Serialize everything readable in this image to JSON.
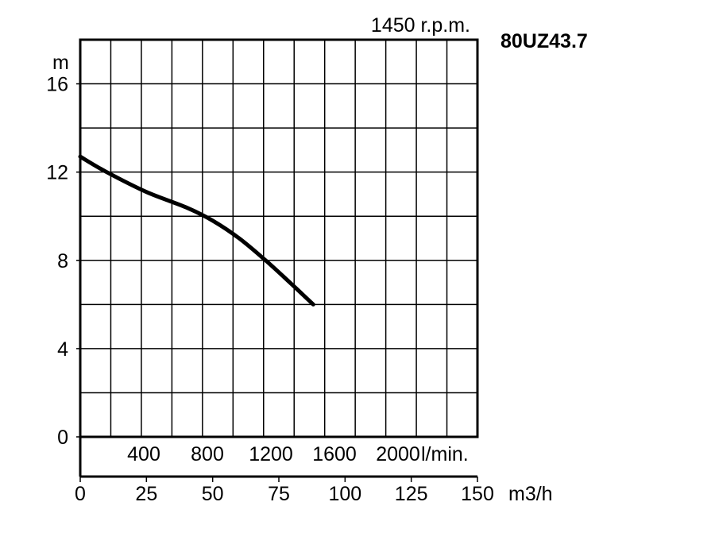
{
  "header": {
    "speed": "1450 r.p.m.",
    "model": "80UZ43.7"
  },
  "chart_data": {
    "type": "line",
    "title": "80UZ43.7",
    "subtitle": "1450 r.p.m.",
    "ylabel": "m",
    "xlabel_m3h": "m3/h",
    "xlabel_lmin": "l/min.",
    "ylim": [
      0,
      18
    ],
    "xlim": [
      0,
      150
    ],
    "grid": true,
    "y_ticks": [
      "0",
      "4",
      "8",
      "12",
      "16"
    ],
    "y_tick_values": [
      0,
      4,
      8,
      12,
      16
    ],
    "x_ticks_m3h": [
      "0",
      "25",
      "50",
      "75",
      "100",
      "125",
      "150"
    ],
    "x_tick_values_m3h": [
      0,
      25,
      50,
      75,
      100,
      125,
      150
    ],
    "x_ticks_lmin": [
      "400",
      "800",
      "1200",
      "1600",
      "2000"
    ],
    "x_tick_values_lmin_m3h": [
      24,
      48,
      72,
      96,
      120
    ],
    "series": [
      {
        "x": [
          0,
          10,
          25,
          40,
          50,
          60,
          70,
          80,
          88
        ],
        "y": [
          12.7,
          12.0,
          11.1,
          10.4,
          9.8,
          9.0,
          8.0,
          6.9,
          6.0
        ]
      }
    ]
  }
}
